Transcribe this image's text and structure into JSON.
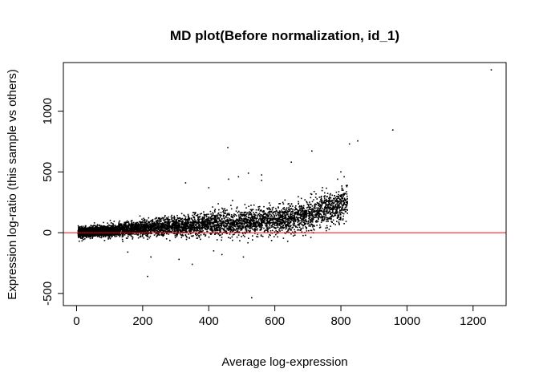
{
  "chart_data": {
    "type": "scatter",
    "title": "MD plot(Before normalization, id_1)",
    "xlabel": "Average log-expression",
    "ylabel": "Expression log-ratio (this sample vs others)",
    "xlim": [
      -40,
      1300
    ],
    "ylim": [
      -600,
      1400
    ],
    "x_ticks": [
      0,
      200,
      400,
      600,
      800,
      1000,
      1200
    ],
    "y_ticks": [
      -500,
      0,
      500,
      1000
    ],
    "grid": false,
    "point_color": "#000000",
    "reference_line": {
      "y": 0,
      "color": "#ff0000"
    },
    "series": [
      {
        "density_trend": {
          "x_range": [
            5,
            820
          ],
          "center_slope": 0.17,
          "spread": [
            20,
            70
          ]
        },
        "outliers": [
          {
            "x": 1255,
            "y": 1340
          },
          {
            "x": 957,
            "y": 845
          },
          {
            "x": 851,
            "y": 755
          },
          {
            "x": 826,
            "y": 730
          },
          {
            "x": 712,
            "y": 672
          },
          {
            "x": 458,
            "y": 700
          },
          {
            "x": 800,
            "y": 500
          },
          {
            "x": 810,
            "y": 460
          },
          {
            "x": 790,
            "y": 440
          },
          {
            "x": 650,
            "y": 580
          },
          {
            "x": 560,
            "y": 430
          },
          {
            "x": 560,
            "y": 475
          },
          {
            "x": 520,
            "y": 490
          },
          {
            "x": 490,
            "y": 460
          },
          {
            "x": 330,
            "y": 410
          },
          {
            "x": 460,
            "y": 440
          },
          {
            "x": 400,
            "y": 370
          },
          {
            "x": 530,
            "y": -535
          },
          {
            "x": 215,
            "y": -360
          },
          {
            "x": 350,
            "y": -260
          },
          {
            "x": 310,
            "y": -220
          },
          {
            "x": 155,
            "y": -160
          },
          {
            "x": 225,
            "y": -200
          },
          {
            "x": 440,
            "y": -180
          },
          {
            "x": 415,
            "y": -150
          },
          {
            "x": 505,
            "y": -200
          }
        ]
      }
    ]
  }
}
